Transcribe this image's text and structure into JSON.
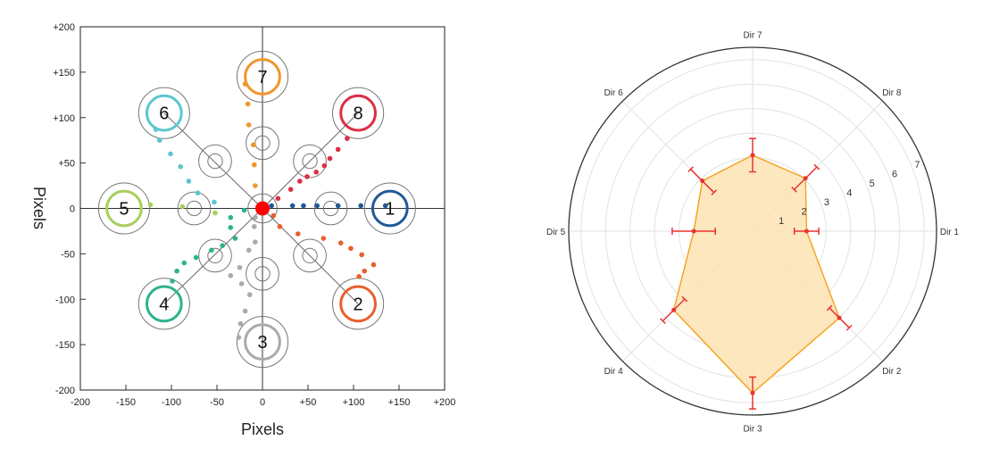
{
  "chart_data": [
    {
      "type": "scatter",
      "xlabel": "Pixels",
      "ylabel": "Pixels",
      "xlim": [
        -200,
        200
      ],
      "ylim": [
        -200,
        200
      ],
      "xticks": [
        "-200",
        "-150",
        "-100",
        "-50",
        "0",
        "+50",
        "+100",
        "+150",
        "+200"
      ],
      "yticks": [
        "+200",
        "+150",
        "+100",
        "+50",
        "0",
        "-50",
        "-100",
        "-150",
        "-200"
      ],
      "origin_marker_color": "#ff0000",
      "targets": [
        {
          "label": "1",
          "x": 140,
          "y": 0,
          "color": "#1f5a96"
        },
        {
          "label": "2",
          "x": 105,
          "y": -105,
          "color": "#e8602c"
        },
        {
          "label": "3",
          "x": 0,
          "y": -147,
          "color": "#aaaaaa"
        },
        {
          "label": "4",
          "x": -108,
          "y": -105,
          "color": "#2bb38f"
        },
        {
          "label": "5",
          "x": -152,
          "y": 0,
          "color": "#a8cf5a"
        },
        {
          "label": "6",
          "x": -108,
          "y": 105,
          "color": "#5cc6cf"
        },
        {
          "label": "7",
          "x": 0,
          "y": 145,
          "color": "#f0962a"
        },
        {
          "label": "8",
          "x": 105,
          "y": 105,
          "color": "#dc2f45"
        }
      ],
      "intermediate_targets": [
        [
          75,
          0
        ],
        [
          52,
          -52
        ],
        [
          0,
          -72
        ],
        [
          -52,
          -52
        ],
        [
          -75,
          0
        ],
        [
          -52,
          52
        ],
        [
          0,
          72
        ],
        [
          52,
          52
        ]
      ],
      "series": [
        {
          "target": "1",
          "color": "#1f5a96",
          "points": [
            [
              10,
              3
            ],
            [
              33,
              3
            ],
            [
              45,
              3
            ],
            [
              60,
              3
            ],
            [
              83,
              3
            ],
            [
              108,
              3
            ],
            [
              135,
              3
            ]
          ]
        },
        {
          "target": "2",
          "color": "#e8602c",
          "points": [
            [
              12,
              -8
            ],
            [
              19,
              -20
            ],
            [
              39,
              -28
            ],
            [
              67,
              -33
            ],
            [
              86,
              -38
            ],
            [
              97,
              -44
            ],
            [
              109,
              -51
            ],
            [
              122,
              -62
            ],
            [
              112,
              -69
            ],
            [
              106,
              -75
            ]
          ]
        },
        {
          "target": "3",
          "color": "#aaaaaa",
          "points": [
            [
              -8,
              -10
            ],
            [
              -9,
              -20
            ],
            [
              -8,
              -37
            ],
            [
              -15,
              -46
            ],
            [
              -25,
              -65
            ],
            [
              -35,
              -74
            ],
            [
              -23,
              -83
            ],
            [
              -14,
              -95
            ],
            [
              -19,
              -113
            ],
            [
              -24,
              -127
            ],
            [
              -26,
              -142
            ]
          ]
        },
        {
          "target": "4",
          "color": "#2bb38f",
          "points": [
            [
              -20,
              -2
            ],
            [
              -35,
              -10
            ],
            [
              -35,
              -21
            ],
            [
              -30,
              -33
            ],
            [
              -44,
              -41
            ],
            [
              -56,
              -46
            ],
            [
              -73,
              -54
            ],
            [
              -86,
              -60
            ],
            [
              -94,
              -69
            ],
            [
              -99,
              -80
            ]
          ]
        },
        {
          "target": "5",
          "color": "#a8cf5a",
          "points": [
            [
              -52,
              -5
            ],
            [
              -88,
              2
            ],
            [
              -123,
              4
            ]
          ]
        },
        {
          "target": "6",
          "color": "#5cc6cf",
          "points": [
            [
              -53,
              7
            ],
            [
              -71,
              17
            ],
            [
              -81,
              30
            ],
            [
              -90,
              46
            ],
            [
              -101,
              60
            ],
            [
              -113,
              75
            ],
            [
              -117,
              87
            ]
          ]
        },
        {
          "target": "7",
          "color": "#f0962a",
          "points": [
            [
              -8,
              25
            ],
            [
              -9,
              48
            ],
            [
              -10,
              70
            ],
            [
              -15,
              92
            ],
            [
              -16,
              115
            ],
            [
              -19,
              137
            ]
          ]
        },
        {
          "target": "8",
          "color": "#dc2f45",
          "points": [
            [
              17,
              11
            ],
            [
              31,
              21
            ],
            [
              41,
              30
            ],
            [
              49,
              35
            ],
            [
              59,
              40
            ],
            [
              68,
              47
            ],
            [
              74,
              55
            ],
            [
              83,
              65
            ],
            [
              93,
              77
            ]
          ]
        }
      ]
    },
    {
      "type": "radar",
      "categories": [
        "Dir 1",
        "Dir 2",
        "Dir 3",
        "Dir 4",
        "Dir 5",
        "Dir 6",
        "Dir 7",
        "Dir 8"
      ],
      "values": [
        2.2,
        5.0,
        6.6,
        4.55,
        2.4,
        2.9,
        3.1,
        3.05
      ],
      "errors": [
        0.5,
        0.57,
        0.65,
        0.63,
        0.88,
        0.67,
        0.68,
        0.65
      ],
      "rticks": [
        "1",
        "2",
        "3",
        "4",
        "5",
        "6",
        "7"
      ],
      "rlim": [
        0,
        7.5
      ],
      "fill_color": "#fde3b4",
      "line_color": "#f5a623",
      "error_color": "#e8332f",
      "grid": true
    }
  ]
}
